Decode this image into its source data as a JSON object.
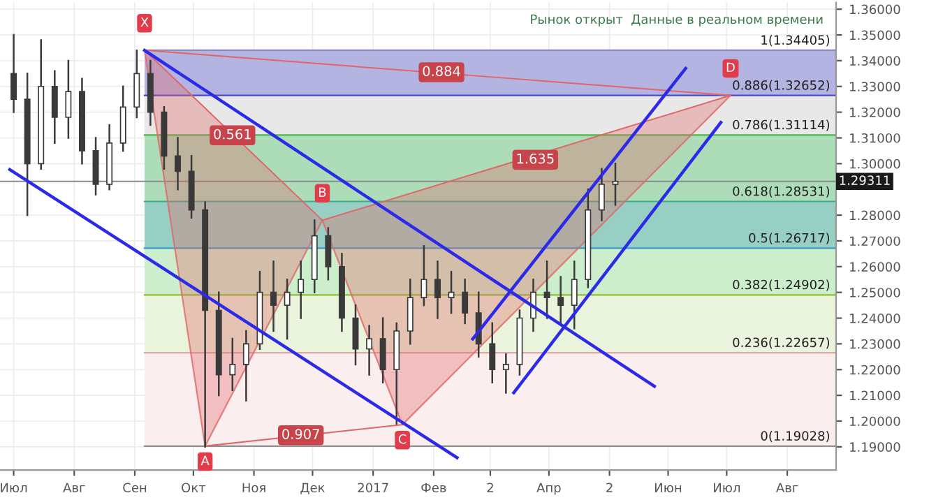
{
  "chart_data": {
    "type": "candlestick",
    "x": [
      "2016-07-01",
      "2016-07-08",
      "2016-07-15",
      "2016-07-22",
      "2016-07-29",
      "2016-08-05",
      "2016-08-12",
      "2016-08-19",
      "2016-08-26",
      "2016-09-02",
      "2016-09-09",
      "2016-09-16",
      "2016-09-23",
      "2016-09-30",
      "2016-10-07",
      "2016-10-14",
      "2016-10-21",
      "2016-10-28",
      "2016-11-04",
      "2016-11-11",
      "2016-11-18",
      "2016-11-25",
      "2016-12-02",
      "2016-12-09",
      "2016-12-16",
      "2016-12-23",
      "2016-12-30",
      "2017-01-06",
      "2017-01-13",
      "2017-01-20",
      "2017-01-27",
      "2017-02-03",
      "2017-02-10",
      "2017-02-17",
      "2017-02-24",
      "2017-03-03",
      "2017-03-10",
      "2017-03-17",
      "2017-03-24",
      "2017-03-31",
      "2017-04-07",
      "2017-04-14",
      "2017-04-21",
      "2017-04-28",
      "2017-05-05"
    ],
    "ohlc": [
      [
        1.335,
        1.35,
        1.32,
        1.325
      ],
      [
        1.325,
        1.335,
        1.28,
        1.3
      ],
      [
        1.3,
        1.348,
        1.298,
        1.33
      ],
      [
        1.33,
        1.336,
        1.308,
        1.318
      ],
      [
        1.318,
        1.34,
        1.31,
        1.328
      ],
      [
        1.328,
        1.333,
        1.3,
        1.305
      ],
      [
        1.305,
        1.31,
        1.288,
        1.292
      ],
      [
        1.292,
        1.315,
        1.29,
        1.308
      ],
      [
        1.308,
        1.33,
        1.305,
        1.322
      ],
      [
        1.322,
        1.344,
        1.318,
        1.335
      ],
      [
        1.335,
        1.34,
        1.315,
        1.32
      ],
      [
        1.32,
        1.322,
        1.298,
        1.303
      ],
      [
        1.303,
        1.31,
        1.29,
        1.297
      ],
      [
        1.297,
        1.303,
        1.279,
        1.282
      ],
      [
        1.282,
        1.285,
        1.19,
        1.243
      ],
      [
        1.243,
        1.25,
        1.21,
        1.218
      ],
      [
        1.218,
        1.232,
        1.212,
        1.222
      ],
      [
        1.222,
        1.235,
        1.208,
        1.23
      ],
      [
        1.23,
        1.258,
        1.228,
        1.25
      ],
      [
        1.25,
        1.262,
        1.235,
        1.245
      ],
      [
        1.245,
        1.255,
        1.232,
        1.25
      ],
      [
        1.25,
        1.262,
        1.24,
        1.255
      ],
      [
        1.255,
        1.278,
        1.25,
        1.272
      ],
      [
        1.272,
        1.275,
        1.255,
        1.26
      ],
      [
        1.26,
        1.265,
        1.235,
        1.24
      ],
      [
        1.24,
        1.245,
        1.222,
        1.228
      ],
      [
        1.228,
        1.237,
        1.218,
        1.232
      ],
      [
        1.232,
        1.24,
        1.215,
        1.22
      ],
      [
        1.22,
        1.238,
        1.199,
        1.235
      ],
      [
        1.235,
        1.255,
        1.23,
        1.248
      ],
      [
        1.248,
        1.268,
        1.245,
        1.255
      ],
      [
        1.255,
        1.262,
        1.24,
        1.248
      ],
      [
        1.248,
        1.258,
        1.242,
        1.25
      ],
      [
        1.25,
        1.255,
        1.238,
        1.242
      ],
      [
        1.242,
        1.25,
        1.225,
        1.23
      ],
      [
        1.23,
        1.238,
        1.215,
        1.22
      ],
      [
        1.22,
        1.226,
        1.211,
        1.222
      ],
      [
        1.222,
        1.243,
        1.218,
        1.24
      ],
      [
        1.24,
        1.255,
        1.235,
        1.25
      ],
      [
        1.25,
        1.262,
        1.24,
        1.248
      ],
      [
        1.248,
        1.256,
        1.238,
        1.245
      ],
      [
        1.245,
        1.262,
        1.236,
        1.255
      ],
      [
        1.255,
        1.29,
        1.252,
        1.282
      ],
      [
        1.282,
        1.298,
        1.278,
        1.292
      ],
      [
        1.292,
        1.3,
        1.284,
        1.29311
      ]
    ],
    "series": [
      {
        "type": "line",
        "color": "#e06666",
        "x": [
          "2016-09-06",
          "2016-10-07",
          "2016-12-06",
          "2017-01-16",
          "2017-07-03"
        ],
        "values": [
          1.34405,
          1.19028,
          1.278,
          1.1986,
          1.32652
        ]
      },
      {
        "type": "line",
        "color": "#e06666",
        "x": [
          "2016-09-06",
          "2016-12-06"
        ],
        "values": [
          1.34405,
          1.278
        ]
      },
      {
        "type": "line",
        "color": "#e06666",
        "x": [
          "2016-10-07",
          "2017-01-16"
        ],
        "values": [
          1.19028,
          1.1986
        ]
      },
      {
        "type": "line",
        "color": "#e06666",
        "x": [
          "2016-12-06",
          "2017-07-03"
        ],
        "values": [
          1.278,
          1.32652
        ]
      },
      {
        "type": "line",
        "color": "#e06666",
        "x": [
          "2016-09-06",
          "2017-07-03"
        ],
        "values": [
          1.34405,
          1.32652
        ]
      },
      {
        "type": "line",
        "color": "#2a2ae8",
        "x": [
          "2016-09-06",
          "2017-05-25"
        ],
        "values": [
          1.344,
          1.2135
        ]
      },
      {
        "type": "line",
        "color": "#2a2ae8",
        "x": [
          "2016-06-29",
          "2017-02-13"
        ],
        "values": [
          1.2977,
          1.1858
        ]
      },
      {
        "type": "line",
        "color": "#2a2ae8",
        "x": [
          "2017-02-21",
          "2017-06-10"
        ],
        "values": [
          1.2319,
          1.337
        ]
      },
      {
        "type": "line",
        "color": "#2a2ae8",
        "x": [
          "2017-03-14",
          "2017-06-28"
        ],
        "values": [
          1.211,
          1.316
        ]
      }
    ],
    "ref_lines": [
      {
        "axis": "y",
        "value": 1.34405,
        "label": "1(1.34405)",
        "color": "#8a8ac0"
      },
      {
        "axis": "y",
        "value": 1.32652,
        "label": "0.886(1.32652)",
        "color": "#4a4ad0"
      },
      {
        "axis": "y",
        "value": 1.31114,
        "label": "0.786(1.31114)",
        "color": "#4cb84c"
      },
      {
        "axis": "y",
        "value": 1.28531,
        "label": "0.618(1.28531)",
        "color": "#3fae8a"
      },
      {
        "axis": "y",
        "value": 1.26717,
        "label": "0.5(1.26717)",
        "color": "#3a9acb"
      },
      {
        "axis": "y",
        "value": 1.24902,
        "label": "0.382(1.24902)",
        "color": "#86c232"
      },
      {
        "axis": "y",
        "value": 1.22657,
        "label": "0.236(1.22657)",
        "color": "#e0a8a8"
      },
      {
        "axis": "y",
        "value": 1.19028,
        "label": "0(1.19028)",
        "color": "#909090"
      },
      {
        "axis": "y",
        "value": 1.29311,
        "label": "1.29311",
        "color": "#8c8c8c"
      }
    ],
    "bands": [
      {
        "axis": "y",
        "from": 1.32652,
        "to": 1.34405,
        "color": "#b4b4e2"
      },
      {
        "axis": "y",
        "from": 1.31114,
        "to": 1.32652,
        "color": "#e8e8e8"
      },
      {
        "axis": "y",
        "from": 1.28531,
        "to": 1.31114,
        "color": "#acdcb8"
      },
      {
        "axis": "y",
        "from": 1.26717,
        "to": 1.28531,
        "color": "#98cfc4"
      },
      {
        "axis": "y",
        "from": 1.24902,
        "to": 1.26717,
        "color": "#cdeecd"
      },
      {
        "axis": "y",
        "from": 1.22657,
        "to": 1.24902,
        "color": "#eaf3dc"
      },
      {
        "axis": "y",
        "from": 1.19028,
        "to": 1.22657,
        "color": "#fbeeee"
      }
    ],
    "annotations": [
      "Рынок открыт  Данные в реальном времени",
      {
        "text": "X",
        "x": "2016-09-06",
        "y": 1.34405
      },
      {
        "text": "A",
        "x": "2016-10-07",
        "y": 1.19028
      },
      {
        "text": "B",
        "x": "2016-12-06",
        "y": 1.278
      },
      {
        "text": "C",
        "x": "2017-01-16",
        "y": 1.1986
      },
      {
        "text": "D",
        "x": "2017-07-03",
        "y": 1.32652
      },
      {
        "text": "0.561",
        "x": "2016-10-21",
        "y": 1.311
      },
      {
        "text": "0.907",
        "x": "2016-11-25",
        "y": 1.1945
      },
      {
        "text": "1.635",
        "x": "2017-03-25",
        "y": 1.3015
      },
      {
        "text": "0.884",
        "x": "2017-02-05",
        "y": 1.3355
      }
    ],
    "xlim": [
      "2016-06-24",
      "2017-08-26"
    ],
    "xticks": [
      {
        "value": "2016-07-01",
        "label": "Июл"
      },
      {
        "value": "2016-08-01",
        "label": "Авг"
      },
      {
        "value": "2016-09-01",
        "label": "Сен"
      },
      {
        "value": "2016-10-01",
        "label": "Окт"
      },
      {
        "value": "2016-11-01",
        "label": "Ноя"
      },
      {
        "value": "2016-12-01",
        "label": "Дек"
      },
      {
        "value": "2017-01-01",
        "label": "2017"
      },
      {
        "value": "2017-02-01",
        "label": "Фев"
      },
      {
        "value": "2017-03-02",
        "label": "2"
      },
      {
        "value": "2017-04-01",
        "label": "Апр"
      },
      {
        "value": "2017-05-02",
        "label": "2"
      },
      {
        "value": "2017-06-01",
        "label": "Июн"
      },
      {
        "value": "2017-07-01",
        "label": "Июл"
      },
      {
        "value": "2017-08-01",
        "label": "Авг"
      }
    ],
    "ylim": [
      1.181,
      1.3626
    ],
    "yticks": [
      {
        "value": 1.19,
        "label": "1.19000"
      },
      {
        "value": 1.2,
        "label": "1.20000"
      },
      {
        "value": 1.21,
        "label": "1.21000"
      },
      {
        "value": 1.22,
        "label": "1.22000"
      },
      {
        "value": 1.23,
        "label": "1.23000"
      },
      {
        "value": 1.24,
        "label": "1.24000"
      },
      {
        "value": 1.25,
        "label": "1.25000"
      },
      {
        "value": 1.26,
        "label": "1.26000"
      },
      {
        "value": 1.27,
        "label": "1.27000"
      },
      {
        "value": 1.28,
        "label": "1.28000"
      },
      {
        "value": 1.3,
        "label": "1.30000"
      },
      {
        "value": 1.31,
        "label": "1.31000"
      },
      {
        "value": 1.32,
        "label": "1.32000"
      },
      {
        "value": 1.33,
        "label": "1.33000"
      },
      {
        "value": 1.34,
        "label": "1.34000"
      },
      {
        "value": 1.35,
        "label": "1.35000"
      },
      {
        "value": 1.36,
        "label": "1.36000"
      }
    ],
    "grid": true,
    "legend": false
  }
}
